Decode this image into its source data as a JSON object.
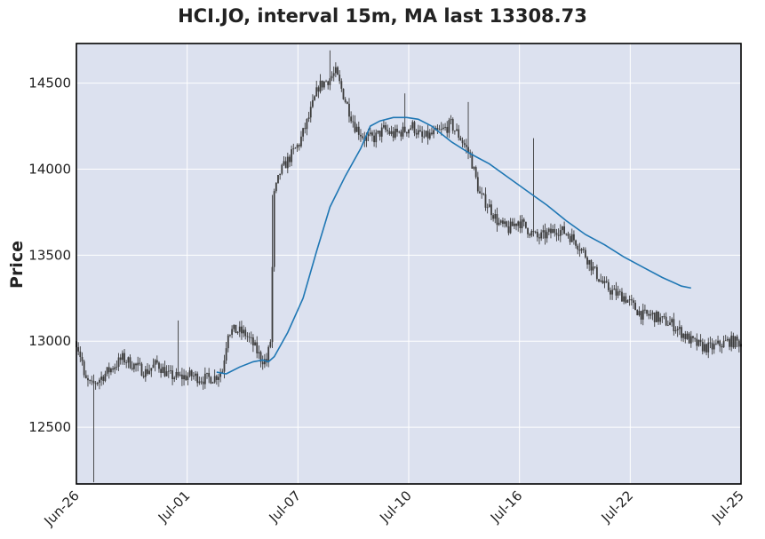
{
  "title": "HCI.JO, interval 15m, MA last 13308.73",
  "chart_data": {
    "type": "candlestick",
    "title": "HCI.JO, interval 15m, MA last 13308.73",
    "ylabel": "Price",
    "xlabel": "",
    "ylim": [
      12170,
      14730
    ],
    "yticks": [
      12500,
      13000,
      13500,
      14000,
      14500
    ],
    "xticks": [
      "Jun-26",
      "Jul-01",
      "Jul-07",
      "Jul-10",
      "Jul-16",
      "Jul-22",
      "Jul-25"
    ],
    "grid": true,
    "colors": {
      "background": "#dce1ef",
      "candle": "#3c3c3c",
      "ma": "#1f77b4",
      "grid": "#ffffff"
    },
    "price_path": [
      [
        0,
        13000
      ],
      [
        3,
        12880
      ],
      [
        4,
        12780
      ],
      [
        8,
        12740
      ],
      [
        12,
        12780
      ],
      [
        18,
        12840
      ],
      [
        24,
        12900
      ],
      [
        30,
        12860
      ],
      [
        36,
        12820
      ],
      [
        42,
        12870
      ],
      [
        48,
        12800
      ],
      [
        54,
        12790
      ],
      [
        60,
        12800
      ],
      [
        66,
        12780
      ],
      [
        72,
        12790
      ],
      [
        76,
        12830
      ],
      [
        79,
        13060
      ],
      [
        84,
        13060
      ],
      [
        88,
        13040
      ],
      [
        92,
        12980
      ],
      [
        96,
        12900
      ],
      [
        99,
        12880
      ],
      [
        101,
        13000
      ],
      [
        103,
        13850
      ],
      [
        106,
        13980
      ],
      [
        110,
        14050
      ],
      [
        116,
        14150
      ],
      [
        121,
        14300
      ],
      [
        126,
        14480
      ],
      [
        131,
        14520
      ],
      [
        135,
        14560
      ],
      [
        140,
        14400
      ],
      [
        145,
        14250
      ],
      [
        150,
        14180
      ],
      [
        155,
        14180
      ],
      [
        160,
        14230
      ],
      [
        165,
        14200
      ],
      [
        170,
        14220
      ],
      [
        175,
        14250
      ],
      [
        180,
        14180
      ],
      [
        185,
        14200
      ],
      [
        190,
        14220
      ],
      [
        195,
        14260
      ],
      [
        200,
        14180
      ],
      [
        205,
        14080
      ],
      [
        210,
        13850
      ],
      [
        215,
        13780
      ],
      [
        220,
        13680
      ],
      [
        225,
        13650
      ],
      [
        230,
        13700
      ],
      [
        235,
        13650
      ],
      [
        240,
        13600
      ],
      [
        245,
        13620
      ],
      [
        250,
        13650
      ],
      [
        255,
        13630
      ],
      [
        260,
        13580
      ],
      [
        265,
        13500
      ],
      [
        270,
        13400
      ],
      [
        275,
        13320
      ],
      [
        280,
        13280
      ],
      [
        285,
        13260
      ],
      [
        290,
        13200
      ],
      [
        295,
        13150
      ],
      [
        300,
        13150
      ],
      [
        305,
        13120
      ],
      [
        310,
        13100
      ],
      [
        315,
        13050
      ],
      [
        320,
        13000
      ],
      [
        325,
        12970
      ],
      [
        330,
        12960
      ],
      [
        335,
        12980
      ],
      [
        340,
        13000
      ],
      [
        346,
        12990
      ]
    ],
    "spikes": [
      {
        "x": 9,
        "low": 12180
      },
      {
        "x": 53,
        "high": 13120
      },
      {
        "x": 102,
        "high": 13850
      },
      {
        "x": 132,
        "high": 14690
      },
      {
        "x": 171,
        "high": 14440
      },
      {
        "x": 204,
        "high": 14390
      },
      {
        "x": 238,
        "high": 14180
      }
    ],
    "ma_path": [
      [
        73,
        12820
      ],
      [
        78,
        12810
      ],
      [
        85,
        12850
      ],
      [
        92,
        12880
      ],
      [
        97,
        12890
      ],
      [
        100,
        12880
      ],
      [
        103,
        12910
      ],
      [
        110,
        13050
      ],
      [
        118,
        13250
      ],
      [
        125,
        13520
      ],
      [
        132,
        13780
      ],
      [
        140,
        13960
      ],
      [
        148,
        14120
      ],
      [
        153,
        14250
      ],
      [
        158,
        14280
      ],
      [
        165,
        14300
      ],
      [
        172,
        14300
      ],
      [
        178,
        14290
      ],
      [
        185,
        14250
      ],
      [
        195,
        14160
      ],
      [
        205,
        14090
      ],
      [
        215,
        14030
      ],
      [
        225,
        13950
      ],
      [
        235,
        13870
      ],
      [
        245,
        13790
      ],
      [
        255,
        13700
      ],
      [
        265,
        13620
      ],
      [
        275,
        13560
      ],
      [
        285,
        13490
      ],
      [
        295,
        13430
      ],
      [
        305,
        13370
      ],
      [
        315,
        13320
      ],
      [
        320,
        13308.73
      ]
    ],
    "x_range": [
      0,
      346
    ]
  }
}
